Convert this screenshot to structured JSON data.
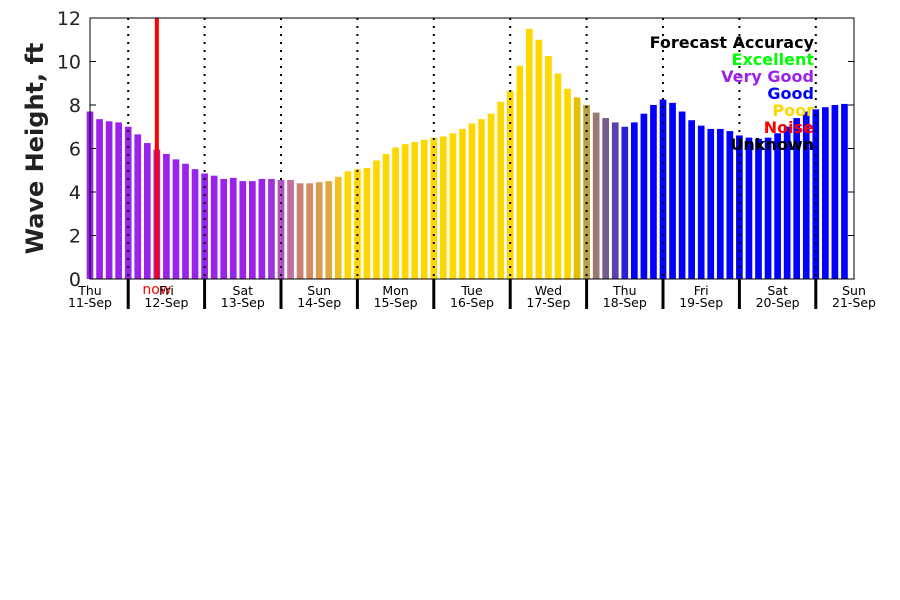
{
  "chart_data": {
    "type": "bar",
    "ylabel": "Wave Height, ft",
    "ylim": [
      0,
      12
    ],
    "yticks": [
      0,
      2,
      4,
      6,
      8,
      10,
      12
    ],
    "bars_per_day": 8,
    "x_start_hour": 12,
    "x_end_hour": 252,
    "days": [
      {
        "name": "Thu",
        "date": "11-Sep"
      },
      {
        "name": "Fri",
        "date": "12-Sep"
      },
      {
        "name": "Sat",
        "date": "13-Sep"
      },
      {
        "name": "Sun",
        "date": "14-Sep"
      },
      {
        "name": "Mon",
        "date": "15-Sep"
      },
      {
        "name": "Tue",
        "date": "16-Sep"
      },
      {
        "name": "Wed",
        "date": "17-Sep"
      },
      {
        "name": "Thu",
        "date": "18-Sep"
      },
      {
        "name": "Fri",
        "date": "19-Sep"
      },
      {
        "name": "Sat",
        "date": "20-Sep"
      },
      {
        "name": "Sun",
        "date": "21-Sep"
      }
    ],
    "now_label": "now",
    "now_hour": 33,
    "values": [
      7.7,
      7.35,
      7.25,
      7.2,
      7.0,
      6.65,
      6.25,
      5.95,
      5.75,
      5.5,
      5.3,
      5.05,
      4.85,
      4.75,
      4.6,
      4.65,
      4.5,
      4.5,
      4.6,
      4.6,
      4.55,
      4.55,
      4.4,
      4.4,
      4.45,
      4.5,
      4.7,
      4.95,
      5.05,
      5.1,
      5.45,
      5.75,
      6.05,
      6.2,
      6.3,
      6.4,
      6.5,
      6.55,
      6.7,
      6.9,
      7.15,
      7.35,
      7.6,
      8.15,
      8.65,
      9.8,
      11.5,
      11.0,
      10.25,
      9.45,
      8.75,
      8.35,
      8.0,
      7.65,
      7.4,
      7.2,
      7.0,
      7.2,
      7.6,
      8.0,
      8.25,
      8.1,
      7.7,
      7.3,
      7.05,
      6.9,
      6.9,
      6.8,
      6.6,
      6.5,
      6.45,
      6.5,
      6.7,
      7.0,
      7.4,
      7.7,
      7.8,
      7.9,
      8.0,
      8.05
    ],
    "colors": [
      "#9b22e8",
      "#9b22e8",
      "#9b22e8",
      "#9b22e8",
      "#9b22e8",
      "#9b22e8",
      "#9b22e8",
      "#9b22e8",
      "#9b22e8",
      "#9b22e8",
      "#9b22e8",
      "#9b22e8",
      "#9b22e8",
      "#9b22e8",
      "#9b22e8",
      "#9b22e8",
      "#9b22e8",
      "#9b22e8",
      "#9b22e8",
      "#a033d8",
      "#b050c0",
      "#c070a0",
      "#cc8070",
      "#d68c60",
      "#dc9c50",
      "#e0a840",
      "#f0c020",
      "#ffd700",
      "#ffd700",
      "#ffd700",
      "#ffd700",
      "#ffd700",
      "#ffd700",
      "#ffd700",
      "#ffd700",
      "#ffd700",
      "#ffd700",
      "#ffd700",
      "#ffd700",
      "#ffd700",
      "#ffd700",
      "#ffd700",
      "#ffd700",
      "#ffd700",
      "#ffd700",
      "#ffd700",
      "#ffd700",
      "#ffd700",
      "#ffd700",
      "#ffd700",
      "#ffd700",
      "#e0c000",
      "#b8a040",
      "#9a7a70",
      "#7a5890",
      "#5a40b0",
      "#2a20d8",
      "#0000ff",
      "#0000ff",
      "#0000ff",
      "#0000ff",
      "#0000ff",
      "#0000ff",
      "#0000ff",
      "#0000ff",
      "#0000ff",
      "#0000ff",
      "#0000ff",
      "#0000ff",
      "#0000ff",
      "#0000ff",
      "#0000ff",
      "#0000ff",
      "#0000ff",
      "#0000ff",
      "#0000ff",
      "#0000ff",
      "#0000ff",
      "#0000ff",
      "#0000ff"
    ],
    "legend": {
      "title": "Forecast Accuracy",
      "placement": "top-right",
      "entries": [
        {
          "label": "Excellent",
          "color": "#00ff00"
        },
        {
          "label": "Very Good",
          "color": "#9b22e8"
        },
        {
          "label": "Good",
          "color": "#0000ff"
        },
        {
          "label": "Poor",
          "color": "#ffd700"
        },
        {
          "label": "Noise",
          "color": "#ff0000"
        },
        {
          "label": "Unknown",
          "color": "#000000"
        }
      ]
    },
    "grid": "dotted vertical lines at day boundaries",
    "now_color": "#ff0000"
  }
}
